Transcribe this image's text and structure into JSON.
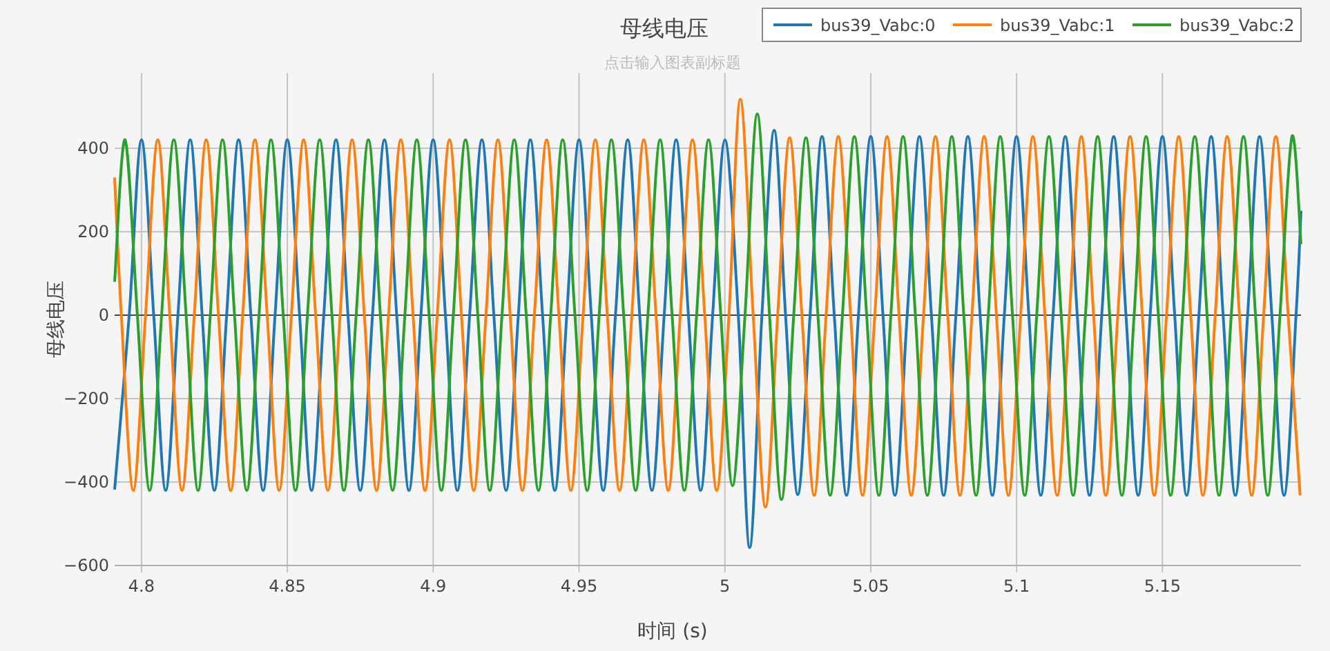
{
  "chart_data": {
    "type": "line",
    "title": "母线电压",
    "subtitle": "点击输入图表副标题",
    "xlabel": "时间 (s)",
    "ylabel": "母线电压",
    "xlim": [
      4.7908,
      5.1975
    ],
    "ylim": [
      -600,
      580
    ],
    "xticks": [
      4.8,
      4.85,
      4.9,
      4.95,
      5,
      5.05,
      5.1,
      5.15
    ],
    "yticks": [
      -600,
      -400,
      -200,
      0,
      200,
      400
    ],
    "grid": true,
    "legend": "top right",
    "series": [
      {
        "name": "bus39_Vabc:0",
        "color": "#1f77b4",
        "x": [
          4.7908,
          4.7958,
          4.8,
          4.8042,
          4.8083,
          4.8125,
          4.8167,
          4.8208,
          4.825,
          4.8292,
          4.8333,
          4.8375,
          4.8417,
          4.8458,
          4.85,
          4.8542,
          4.8583,
          4.8625,
          4.8667,
          4.8708,
          4.875,
          4.8792,
          4.8833,
          4.8875,
          4.8917,
          4.8958,
          4.9,
          4.9042,
          4.9083,
          4.9125,
          4.9167,
          4.9208,
          4.925,
          4.9292,
          4.9333,
          4.9375,
          4.9417,
          4.9458,
          4.95,
          4.9542,
          4.9583,
          4.9625,
          4.9667,
          4.9708,
          4.975,
          4.9792,
          4.9833,
          4.9875,
          4.9917,
          4.9958,
          5.0,
          5.0046,
          5.0085,
          5.0127,
          5.0169,
          5.0208,
          5.025,
          5.0292,
          5.0333,
          5.0375,
          5.0417,
          5.0458,
          5.05,
          5.0542,
          5.0583,
          5.0625,
          5.0667,
          5.0708,
          5.075,
          5.0792,
          5.0833,
          5.0875,
          5.0917,
          5.0958,
          5.1,
          5.1042,
          5.1083,
          5.1125,
          5.1167,
          5.1208,
          5.125,
          5.1292,
          5.1333,
          5.1375,
          5.1417,
          5.1458,
          5.15,
          5.1542,
          5.1583,
          5.1625,
          5.1667,
          5.1708,
          5.175,
          5.1792,
          5.1833,
          5.1875,
          5.1917,
          5.1958,
          5.1975
        ],
        "values": [
          -418,
          0,
          420,
          0,
          -420,
          0,
          420,
          0,
          -420,
          0,
          420,
          0,
          -420,
          0,
          420,
          0,
          -420,
          0,
          420,
          0,
          -420,
          0,
          420,
          0,
          -420,
          0,
          420,
          0,
          -420,
          0,
          420,
          0,
          -420,
          0,
          420,
          0,
          -420,
          0,
          420,
          0,
          -420,
          0,
          420,
          0,
          -420,
          0,
          420,
          0,
          -420,
          0,
          420,
          0,
          -557,
          0,
          443,
          0,
          -430,
          0,
          428,
          0,
          -432,
          0,
          428,
          0,
          -432,
          0,
          428,
          0,
          -432,
          0,
          428,
          0,
          -432,
          0,
          428,
          0,
          -432,
          0,
          428,
          0,
          -432,
          0,
          428,
          0,
          -432,
          0,
          428,
          0,
          -432,
          0,
          428,
          0,
          -432,
          0,
          428,
          0,
          -432,
          0,
          250
        ]
      },
      {
        "name": "bus39_Vabc:1",
        "color": "#ff7f0e",
        "x": [
          4.7908,
          4.7931,
          4.7972,
          4.8014,
          4.8056,
          4.8097,
          4.8139,
          4.8181,
          4.8222,
          4.8264,
          4.8306,
          4.8347,
          4.8389,
          4.8431,
          4.8472,
          4.8514,
          4.8556,
          4.8597,
          4.8639,
          4.8681,
          4.8722,
          4.8764,
          4.8806,
          4.8847,
          4.8889,
          4.8931,
          4.8972,
          4.9014,
          4.9056,
          4.9097,
          4.9139,
          4.9181,
          4.9222,
          4.9264,
          4.9306,
          4.9347,
          4.9389,
          4.9431,
          4.9472,
          4.9514,
          4.9556,
          4.9597,
          4.9639,
          4.9681,
          4.9722,
          4.9764,
          4.9806,
          4.9847,
          4.9889,
          4.9931,
          4.9972,
          5.0014,
          5.0053,
          5.0097,
          5.0139,
          5.0181,
          5.0222,
          5.0264,
          5.0306,
          5.0347,
          5.0389,
          5.0431,
          5.0472,
          5.0514,
          5.0556,
          5.0597,
          5.0639,
          5.0681,
          5.0722,
          5.0764,
          5.0806,
          5.0847,
          5.0889,
          5.0931,
          5.0972,
          5.1014,
          5.1056,
          5.1097,
          5.1139,
          5.1181,
          5.1222,
          5.1264,
          5.1306,
          5.1347,
          5.1389,
          5.1431,
          5.1472,
          5.1514,
          5.1556,
          5.1597,
          5.1639,
          5.1681,
          5.1722,
          5.1764,
          5.1806,
          5.1847,
          5.1889,
          5.1931,
          5.1972
        ],
        "values": [
          330,
          0,
          -420,
          0,
          420,
          0,
          -420,
          0,
          420,
          0,
          -420,
          0,
          420,
          0,
          -420,
          0,
          420,
          0,
          -420,
          0,
          420,
          0,
          -420,
          0,
          420,
          0,
          -420,
          0,
          420,
          0,
          -420,
          0,
          420,
          0,
          -420,
          0,
          420,
          0,
          -420,
          0,
          420,
          0,
          -420,
          0,
          420,
          0,
          -420,
          0,
          420,
          0,
          -420,
          0,
          517,
          0,
          -460,
          0,
          425,
          0,
          -432,
          0,
          428,
          0,
          -432,
          0,
          428,
          0,
          -432,
          0,
          428,
          0,
          -432,
          0,
          428,
          0,
          -432,
          0,
          428,
          0,
          -432,
          0,
          428,
          0,
          -432,
          0,
          428,
          0,
          -432,
          0,
          428,
          0,
          -432,
          0,
          428,
          0,
          -432,
          0,
          428,
          0,
          -432
        ]
      },
      {
        "name": "bus39_Vabc:2",
        "color": "#2ca02c",
        "x": [
          4.7908,
          4.7944,
          4.7986,
          4.8028,
          4.8069,
          4.8111,
          4.8153,
          4.8194,
          4.8236,
          4.8278,
          4.8319,
          4.8361,
          4.8403,
          4.8444,
          4.8486,
          4.8528,
          4.8569,
          4.8611,
          4.8653,
          4.8694,
          4.8736,
          4.8778,
          4.8819,
          4.8861,
          4.8903,
          4.8944,
          4.8986,
          4.9028,
          4.9069,
          4.9111,
          4.9153,
          4.9194,
          4.9236,
          4.9278,
          4.9319,
          4.9361,
          4.9403,
          4.9444,
          4.9486,
          4.9528,
          4.9569,
          4.9611,
          4.9653,
          4.9694,
          4.9736,
          4.9778,
          4.9819,
          4.9861,
          4.9903,
          4.9944,
          4.9986,
          5.0026,
          5.0069,
          5.0111,
          5.0153,
          5.0194,
          5.0236,
          5.0278,
          5.0319,
          5.0361,
          5.0403,
          5.0444,
          5.0486,
          5.0528,
          5.0569,
          5.0611,
          5.0653,
          5.0694,
          5.0736,
          5.0778,
          5.0819,
          5.0861,
          5.0903,
          5.0944,
          5.0986,
          5.1028,
          5.1069,
          5.1111,
          5.1153,
          5.1194,
          5.1236,
          5.1278,
          5.1319,
          5.1361,
          5.1403,
          5.1444,
          5.1486,
          5.1528,
          5.1569,
          5.1611,
          5.1653,
          5.1694,
          5.1736,
          5.1778,
          5.1819,
          5.1861,
          5.1903,
          5.1944,
          5.1975
        ],
        "values": [
          80,
          420,
          0,
          -420,
          0,
          420,
          0,
          -420,
          0,
          420,
          0,
          -420,
          0,
          420,
          0,
          -420,
          0,
          420,
          0,
          -420,
          0,
          420,
          0,
          -420,
          0,
          420,
          0,
          -420,
          0,
          420,
          0,
          -420,
          0,
          420,
          0,
          -420,
          0,
          420,
          0,
          -420,
          0,
          420,
          0,
          -420,
          0,
          420,
          0,
          -420,
          0,
          420,
          0,
          -409,
          0,
          482,
          0,
          -442,
          0,
          425,
          0,
          -432,
          0,
          428,
          0,
          -432,
          0,
          428,
          0,
          -432,
          0,
          428,
          0,
          -432,
          0,
          428,
          0,
          -432,
          0,
          428,
          0,
          -432,
          0,
          428,
          0,
          -432,
          0,
          428,
          0,
          -432,
          0,
          428,
          0,
          -432,
          0,
          428,
          0,
          -432,
          0,
          428,
          170
        ]
      }
    ]
  }
}
